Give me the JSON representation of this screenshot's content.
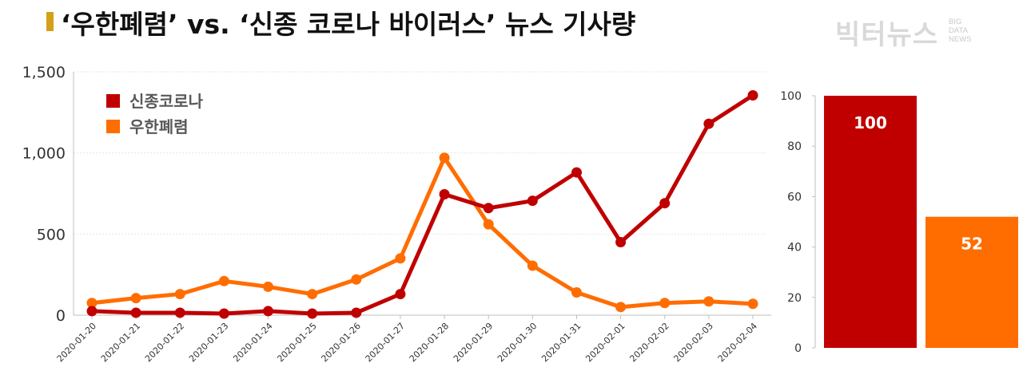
{
  "title": "‘우한폐렴’ vs. ‘신종 코로나 바이러스’ 뉴스 기사량",
  "logo": {
    "main": "빅터뉴스",
    "sub": [
      "BIG",
      "DATA",
      "NEWS"
    ]
  },
  "chart_data": [
    {
      "type": "line",
      "x": [
        "2020-01-20",
        "2020-01-21",
        "2020-01-22",
        "2020-01-23",
        "2020-01-24",
        "2020-01-25",
        "2020-01-26",
        "2020-01-27",
        "2020-01-28",
        "2020-01-29",
        "2020-01-30",
        "2020-01-31",
        "2020-02-01",
        "2020-02-02",
        "2020-02-03",
        "2020-02-04"
      ],
      "series": [
        {
          "name": "신종코로나",
          "color": "#c00000",
          "values": [
            25,
            15,
            15,
            10,
            25,
            10,
            15,
            130,
            745,
            660,
            705,
            880,
            450,
            690,
            1180,
            1355
          ]
        },
        {
          "name": "우한폐렴",
          "color": "#ff6d00",
          "values": [
            75,
            105,
            130,
            210,
            175,
            130,
            220,
            350,
            970,
            560,
            305,
            140,
            50,
            75,
            85,
            70
          ]
        }
      ],
      "ylim": [
        0,
        1500
      ],
      "yticks": [
        "1,500",
        "1,000",
        "500",
        "0"
      ],
      "ytick_values": [
        1500,
        1000,
        500,
        0
      ],
      "grid": true,
      "legend_placement": "top-left"
    },
    {
      "type": "bar",
      "categories": [
        "신종코로나",
        "우한폐렴"
      ],
      "values": [
        100,
        52
      ],
      "colors": [
        "#c00000",
        "#ff6d00"
      ],
      "data_labels": [
        "100",
        "52"
      ],
      "ylim": [
        0,
        100
      ],
      "yticks": [
        "100",
        "80",
        "60",
        "40",
        "20",
        "0"
      ],
      "ytick_values": [
        100,
        80,
        60,
        40,
        20,
        0
      ]
    }
  ]
}
